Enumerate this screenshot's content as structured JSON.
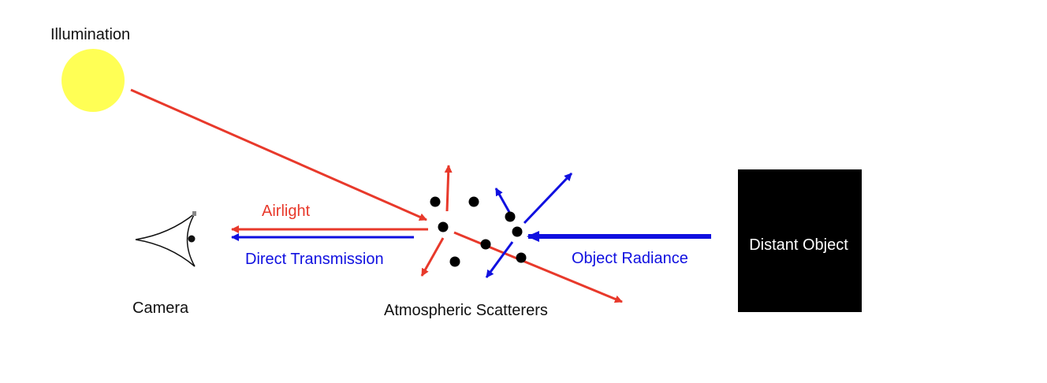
{
  "labels": {
    "illumination": "Illumination",
    "camera": "Camera",
    "airlight": "Airlight",
    "direct_transmission": "Direct Transmission",
    "atmospheric_scatterers": "Atmospheric Scatterers",
    "object_radiance": "Object Radiance",
    "distant_object": "Distant Object"
  },
  "colors": {
    "illumination_path": "#e8392b",
    "object_radiance_path": "#1010e0",
    "sun_fill": "#ffff55",
    "object_fill": "#000000",
    "object_text": "#ffffff",
    "text": "#111111"
  },
  "icons": {
    "sun": "sun-icon",
    "camera": "eye-camera-icon",
    "particle": "scatterer-particle-icon"
  }
}
